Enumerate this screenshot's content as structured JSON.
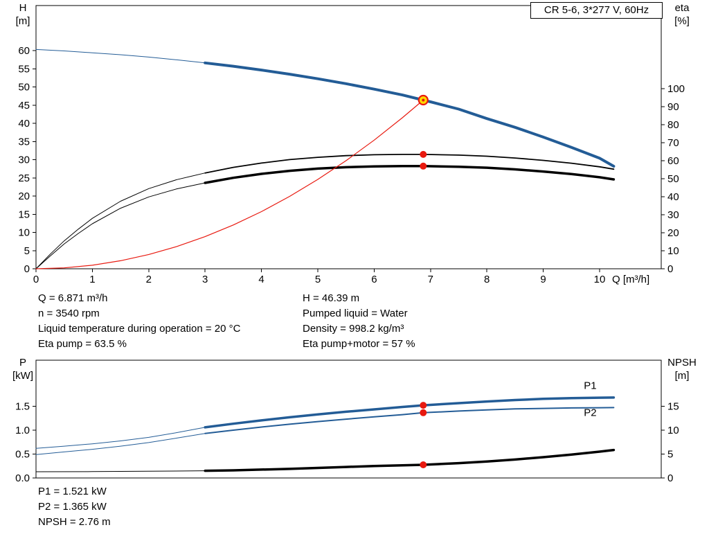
{
  "colors": {
    "curve_blue": "#235c96",
    "curve_black": "#000000",
    "curve_red": "#e8190f",
    "duty_yellow": "#ffd800",
    "frame": "#000000"
  },
  "annotations": {
    "top_left": [
      "Q = 6.871 m³/h",
      "n = 3540 rpm",
      "Liquid temperature during operation = 20 °C",
      "Eta pump = 63.5 %"
    ],
    "top_right": [
      "H = 46.39 m",
      "Pumped liquid = Water",
      "Density = 998.2 kg/m³",
      "Eta pump+motor = 57 %"
    ],
    "bottom": [
      "P1 = 1.521 kW",
      "P2 = 1.365 kW",
      "NPSH = 2.76 m"
    ]
  },
  "chart_data": [
    {
      "id": "qh-eta",
      "type": "line",
      "title": "CR 5-6, 3*277 V, 60Hz",
      "grid": false,
      "x_axis": {
        "title": "Q [m³/h]",
        "min": 0,
        "max": 11.1,
        "tick_values": [
          0,
          1,
          2,
          3,
          4,
          5,
          6,
          7,
          8,
          9,
          10
        ],
        "tick_labels": [
          "0",
          "1",
          "2",
          "3",
          "4",
          "5",
          "6",
          "7",
          "8",
          "9",
          "10"
        ]
      },
      "left_axis": {
        "title_lines": [
          "H",
          "[m]"
        ],
        "min": 0,
        "max": 60,
        "tick_values": [
          0,
          5,
          10,
          15,
          20,
          25,
          30,
          35,
          40,
          45,
          50,
          55,
          60
        ],
        "tick_labels": [
          "0",
          "5",
          "10",
          "15",
          "20",
          "25",
          "30",
          "35",
          "40",
          "45",
          "50",
          "55",
          "60"
        ]
      },
      "right_axis": {
        "title_lines": [
          "eta",
          "[%]"
        ],
        "min": 0,
        "max": 100,
        "tick_values": [
          0,
          10,
          20,
          30,
          40,
          50,
          60,
          70,
          80,
          90,
          100
        ],
        "tick_labels": [
          "0",
          "10",
          "20",
          "30",
          "40",
          "50",
          "60",
          "70",
          "80",
          "90",
          "100"
        ]
      },
      "series": [
        {
          "name": "eta-pump-curve",
          "label": "Eta pump",
          "axis": "right",
          "color": "#000000",
          "width": 1.8,
          "width_thin": 1,
          "thick_from": 3,
          "points": [
            [
              0,
              0
            ],
            [
              0.25,
              8
            ],
            [
              0.5,
              15.5
            ],
            [
              0.75,
              22
            ],
            [
              1,
              28
            ],
            [
              1.5,
              37.5
            ],
            [
              2,
              44.5
            ],
            [
              2.5,
              49.5
            ],
            [
              3,
              53.2
            ],
            [
              3.5,
              56.3
            ],
            [
              4,
              58.7
            ],
            [
              4.5,
              60.6
            ],
            [
              5,
              61.9
            ],
            [
              5.5,
              62.8
            ],
            [
              6,
              63.3
            ],
            [
              6.5,
              63.5
            ],
            [
              6.871,
              63.5
            ],
            [
              7.5,
              63.1
            ],
            [
              8,
              62.5
            ],
            [
              8.5,
              61.5
            ],
            [
              9,
              60.2
            ],
            [
              9.5,
              58.6
            ],
            [
              10,
              56.6
            ],
            [
              10.25,
              55.3
            ]
          ]
        },
        {
          "name": "eta-pump-motor-curve",
          "label": "Eta pump+motor",
          "axis": "right",
          "color": "#000000",
          "width": 3.5,
          "width_thin": 1,
          "thick_from": 3,
          "points": [
            [
              0,
              0
            ],
            [
              0.25,
              7
            ],
            [
              0.5,
              13.8
            ],
            [
              0.75,
              19.6
            ],
            [
              1,
              25
            ],
            [
              1.5,
              33.6
            ],
            [
              2,
              39.9
            ],
            [
              2.5,
              44.4
            ],
            [
              3,
              47.7
            ],
            [
              3.5,
              50.5
            ],
            [
              4,
              52.7
            ],
            [
              4.5,
              54.4
            ],
            [
              5,
              55.6
            ],
            [
              5.5,
              56.4
            ],
            [
              6,
              56.85
            ],
            [
              6.5,
              57
            ],
            [
              6.871,
              57
            ],
            [
              7.5,
              56.6
            ],
            [
              8,
              56.1
            ],
            [
              8.5,
              55.2
            ],
            [
              9,
              54
            ],
            [
              9.5,
              52.6
            ],
            [
              10,
              50.8
            ],
            [
              10.25,
              49.6
            ]
          ]
        },
        {
          "name": "head-curve",
          "label": "H",
          "axis": "left",
          "color": "#235c96",
          "width": 4,
          "width_thin": 1,
          "thick_from": 3,
          "points": [
            [
              0,
              60.3
            ],
            [
              0.5,
              59.9
            ],
            [
              1,
              59.4
            ],
            [
              1.5,
              58.85
            ],
            [
              2,
              58.2
            ],
            [
              2.5,
              57.45
            ],
            [
              3,
              56.6
            ],
            [
              3.5,
              55.7
            ],
            [
              4,
              54.65
            ],
            [
              4.5,
              53.5
            ],
            [
              5,
              52.25
            ],
            [
              5.5,
              50.9
            ],
            [
              6,
              49.4
            ],
            [
              6.5,
              47.8
            ],
            [
              6.871,
              46.39
            ],
            [
              7,
              45.9
            ],
            [
              7.5,
              43.9
            ],
            [
              8,
              41.3
            ],
            [
              8.5,
              38.9
            ],
            [
              9,
              36.2
            ],
            [
              9.5,
              33.4
            ],
            [
              10,
              30.4
            ],
            [
              10.25,
              28.2
            ]
          ]
        },
        {
          "name": "system-curve",
          "label": "",
          "axis": "left",
          "color": "#e8190f",
          "width": 1.2,
          "width_thin": 1.2,
          "thick_from": null,
          "points": [
            [
              0,
              0
            ],
            [
              0.5,
              0.25
            ],
            [
              1,
              0.98
            ],
            [
              1.5,
              2.21
            ],
            [
              2,
              3.93
            ],
            [
              2.5,
              6.14
            ],
            [
              3,
              8.84
            ],
            [
              3.5,
              12.04
            ],
            [
              4,
              15.72
            ],
            [
              4.5,
              19.9
            ],
            [
              5,
              24.57
            ],
            [
              5.5,
              29.72
            ],
            [
              6,
              35.37
            ],
            [
              6.5,
              41.52
            ],
            [
              6.871,
              46.39
            ]
          ]
        }
      ],
      "markers": [
        {
          "kind": "duty",
          "axis": "left",
          "q": 6.871,
          "v": 46.39
        },
        {
          "kind": "dot",
          "axis": "right",
          "q": 6.871,
          "v": 63.5
        },
        {
          "kind": "dot",
          "axis": "right",
          "q": 6.871,
          "v": 57
        }
      ],
      "curve_labels": []
    },
    {
      "id": "power-npsh",
      "type": "line",
      "title": "",
      "grid": false,
      "x_axis": {
        "title": "",
        "min": 0,
        "max": 11.1,
        "tick_values": [],
        "tick_labels": []
      },
      "left_axis": {
        "title_lines": [
          "P",
          "[kW]"
        ],
        "min": 0,
        "max": 1.5,
        "tick_values": [
          0,
          0.5,
          1,
          1.5
        ],
        "tick_labels": [
          "0.0",
          "0.5",
          "1.0",
          "1.5"
        ]
      },
      "right_axis": {
        "title_lines": [
          "NPSH",
          "[m]"
        ],
        "min": 0,
        "max": 15,
        "tick_values": [
          0,
          5,
          10,
          15
        ],
        "tick_labels": [
          "0",
          "5",
          "10",
          "15"
        ]
      },
      "series": [
        {
          "name": "p1-curve",
          "label": "P1",
          "axis": "left",
          "color": "#235c96",
          "width": 3.5,
          "width_thin": 1,
          "thick_from": 3,
          "points": [
            [
              0,
              0.62
            ],
            [
              0.5,
              0.665
            ],
            [
              1,
              0.715
            ],
            [
              1.5,
              0.775
            ],
            [
              2,
              0.85
            ],
            [
              2.5,
              0.95
            ],
            [
              3,
              1.06
            ],
            [
              3.5,
              1.135
            ],
            [
              4,
              1.205
            ],
            [
              4.5,
              1.27
            ],
            [
              5,
              1.33
            ],
            [
              5.5,
              1.385
            ],
            [
              6,
              1.435
            ],
            [
              6.5,
              1.485
            ],
            [
              6.871,
              1.521
            ],
            [
              7.5,
              1.565
            ],
            [
              8,
              1.6
            ],
            [
              8.5,
              1.63
            ],
            [
              9,
              1.655
            ],
            [
              9.5,
              1.67
            ],
            [
              10,
              1.68
            ],
            [
              10.25,
              1.683
            ]
          ]
        },
        {
          "name": "p2-curve",
          "label": "P2",
          "axis": "left",
          "color": "#235c96",
          "width": 2,
          "width_thin": 1,
          "thick_from": 3,
          "points": [
            [
              0,
              0.49
            ],
            [
              0.5,
              0.545
            ],
            [
              1,
              0.6
            ],
            [
              1.5,
              0.665
            ],
            [
              2,
              0.74
            ],
            [
              2.5,
              0.835
            ],
            [
              3,
              0.93
            ],
            [
              3.5,
              1.0
            ],
            [
              4,
              1.065
            ],
            [
              4.5,
              1.125
            ],
            [
              5,
              1.18
            ],
            [
              5.5,
              1.23
            ],
            [
              6,
              1.28
            ],
            [
              6.5,
              1.325
            ],
            [
              6.871,
              1.365
            ],
            [
              7.5,
              1.4
            ],
            [
              8,
              1.425
            ],
            [
              8.5,
              1.445
            ],
            [
              9,
              1.455
            ],
            [
              9.5,
              1.465
            ],
            [
              10,
              1.47
            ],
            [
              10.25,
              1.472
            ]
          ]
        },
        {
          "name": "npsh-curve",
          "label": "NPSH",
          "axis": "right",
          "color": "#000000",
          "width": 3.5,
          "width_thin": 1,
          "thick_from": 3,
          "points": [
            [
              0,
              1.3
            ],
            [
              1,
              1.33
            ],
            [
              2,
              1.4
            ],
            [
              3,
              1.5
            ],
            [
              3.5,
              1.6
            ],
            [
              4,
              1.75
            ],
            [
              4.5,
              1.9
            ],
            [
              5,
              2.1
            ],
            [
              5.5,
              2.3
            ],
            [
              6,
              2.5
            ],
            [
              6.5,
              2.65
            ],
            [
              6.871,
              2.76
            ],
            [
              7.5,
              3.1
            ],
            [
              8,
              3.45
            ],
            [
              8.5,
              3.85
            ],
            [
              9,
              4.35
            ],
            [
              9.5,
              4.9
            ],
            [
              10,
              5.5
            ],
            [
              10.25,
              5.85
            ]
          ]
        }
      ],
      "markers": [
        {
          "kind": "dot",
          "axis": "left",
          "q": 6.871,
          "v": 1.521
        },
        {
          "kind": "dot",
          "axis": "left",
          "q": 6.871,
          "v": 1.365
        },
        {
          "kind": "dot",
          "axis": "right",
          "q": 6.871,
          "v": 2.76
        }
      ],
      "curve_labels": [
        {
          "text": "P1",
          "axis": "left",
          "q": 9.72,
          "v": 1.86
        },
        {
          "text": "P2",
          "axis": "left",
          "q": 9.72,
          "v": 1.3
        }
      ]
    }
  ]
}
